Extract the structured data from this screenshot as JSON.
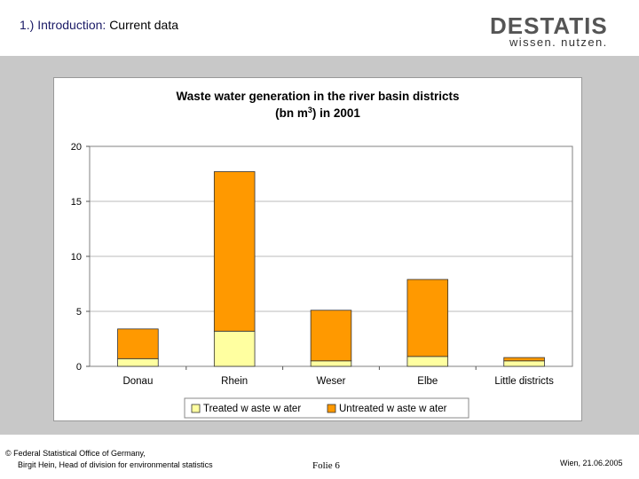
{
  "slide": {
    "number": "1.)",
    "lead": "Introduction:",
    "topic": "Current data"
  },
  "logo": {
    "main": "DESTATIS",
    "sub": "wissen. nutzen."
  },
  "footer": {
    "org": "© Federal Statistical Office of Germany,",
    "author": "Birgit Hein, Head of division for environmental statistics",
    "page": "Folie 6",
    "date": "Wien, 21.06.2005"
  },
  "colors": {
    "treated": "#ffffa0",
    "untreated": "#ff9900",
    "grid": "#bbbbbb"
  },
  "chart_data": {
    "type": "bar",
    "stacked": true,
    "title": "Waste water generation in the river basin districts",
    "title_line2_prefix": "(bn m",
    "title_line2_sup": "3",
    "title_line2_suffix": ") in 2001",
    "categories": [
      "Donau",
      "Rhein",
      "Weser",
      "Elbe",
      "Little districts"
    ],
    "series": [
      {
        "name": "Treated w aste w ater",
        "values": [
          0.7,
          3.2,
          0.5,
          0.9,
          0.5
        ]
      },
      {
        "name": "Untreated w aste w ater",
        "values": [
          2.7,
          14.5,
          4.6,
          7.0,
          0.3
        ]
      }
    ],
    "ylim": [
      0,
      20
    ],
    "yticks": [
      "0",
      "5",
      "10",
      "15",
      "20"
    ],
    "grid": true,
    "legend_position": "bottom"
  }
}
